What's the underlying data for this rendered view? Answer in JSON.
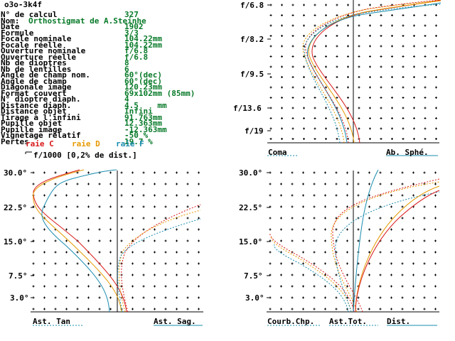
{
  "header": "o3o-3k4f",
  "specs": [
    {
      "label": "N° de calcul",
      "value": "327"
    },
    {
      "label": "Nom:",
      "value": "Orthostigmat de A.Steinhe"
    },
    {
      "label": "Date",
      "value": "1902"
    },
    {
      "label": "Formule",
      "value": "3/3"
    },
    {
      "label": "Focale nominale",
      "value": "104.22mm"
    },
    {
      "label": "Focale réelle",
      "value": "104.22mm"
    },
    {
      "label": "Ouverture nominale",
      "value": "f/6.8"
    },
    {
      "label": "Ouverture réelle",
      "value": "f/6.8"
    },
    {
      "label": "Nb de dioptres",
      "value": "8"
    },
    {
      "label": "Nb de lentilles",
      "value": "6"
    },
    {
      "label": "Angle de champ nom.",
      "value": "60°(dec)"
    },
    {
      "label": "Angle de champ",
      "value": "60°(dec)"
    },
    {
      "label": "Diagonale image",
      "value": "120.23mm"
    },
    {
      "label": "Format couvert",
      "value": "69x102mm (85mm)"
    },
    {
      "label": "N° dioptre diaph.",
      "value": "4"
    },
    {
      "label": "Distance diaph.",
      "value": "4.5    mm"
    },
    {
      "label": "Distance objet",
      "value": "Infini"
    },
    {
      "label": "Tirage à l'infini",
      "value": "91.763mm"
    },
    {
      "label": "Pupille objet",
      "value": "12.363mm"
    },
    {
      "label": "Pupille image",
      "value": "-12.363mm"
    },
    {
      "label": "Vignetage relatif",
      "value": "-50 %"
    },
    {
      "label": "Pertes",
      "value": "19.7 %"
    }
  ],
  "legend": {
    "raie_c": "raie C",
    "raie_d": "raie D",
    "raie_f": "raie F",
    "scale": "f/1000 [0,2% de dist.]"
  },
  "colors": {
    "raie_c": "#d81818",
    "raie_d": "#e69a00",
    "raie_f": "#1a8cae",
    "text_value": "#087a29"
  },
  "captions": {
    "coma": "Coma",
    "ab_sphe": "Ab. Sphé.",
    "ast_tan": "Ast. Tan",
    "ast_sag": "Ast. Sag.",
    "courb": "Courb.Chp.",
    "ast_tot": "Ast.Tot.",
    "dist": "Dist."
  },
  "chart_data": [
    {
      "type": "line",
      "name": "spherical",
      "title": "",
      "y_ticks": [
        "f/6.8",
        "f/8.2",
        "f/9.5",
        "f/13.6",
        "f/19"
      ],
      "series": [
        {
          "name": "raie C",
          "color": "#d81818"
        },
        {
          "name": "raie D",
          "color": "#e69a00"
        },
        {
          "name": "raie F",
          "color": "#1a8cae"
        }
      ]
    },
    {
      "type": "line",
      "name": "astigmatism",
      "title": "",
      "y_ticks": [
        "30.0°",
        "22.5°",
        "15.0°",
        "7.5°",
        "3.0°"
      ],
      "series": [
        {
          "name": "raie C",
          "color": "#d81818"
        },
        {
          "name": "raie D",
          "color": "#e69a00"
        },
        {
          "name": "raie F",
          "color": "#1a8cae"
        }
      ]
    },
    {
      "type": "line",
      "name": "field",
      "title": "",
      "y_ticks": [
        "30.0°",
        "22.5°",
        "15.0°",
        "7.5°",
        "3.0°"
      ],
      "series": [
        {
          "name": "raie C",
          "color": "#d81818"
        },
        {
          "name": "raie D",
          "color": "#e69a00"
        },
        {
          "name": "raie F",
          "color": "#1a8cae"
        }
      ]
    }
  ]
}
